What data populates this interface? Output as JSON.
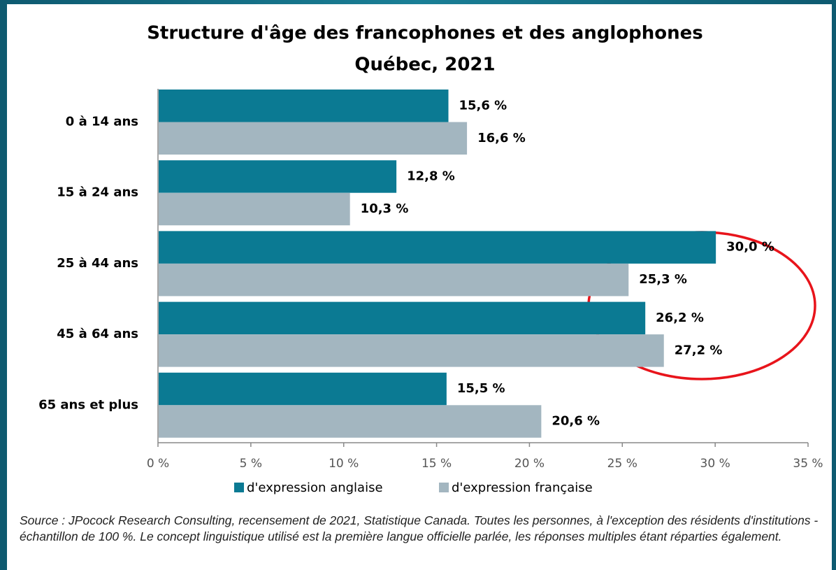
{
  "chart_data": {
    "type": "hbar",
    "title": "Structure d'âge des francophones et des anglophones",
    "subtitle": "Québec, 2021",
    "categories": [
      "0 à 14 ans",
      "15 à 24 ans",
      "25 à 44 ans",
      "45 à 64 ans",
      "65 ans et plus"
    ],
    "series": [
      {
        "name": "d'expression anglaise",
        "color": "#0b7a93",
        "values": [
          15.6,
          12.8,
          30.0,
          26.2,
          15.5
        ],
        "value_labels": [
          "15,6 %",
          "12,8 %",
          "30,0 %",
          "26,2 %",
          "15,5 %"
        ]
      },
      {
        "name": "d'expression française",
        "color": "#a3b6c0",
        "values": [
          16.6,
          10.3,
          25.3,
          27.2,
          20.6
        ],
        "value_labels": [
          "16,6 %",
          "10,3 %",
          "25,3 %",
          "27,2 %",
          "20,6 %"
        ]
      }
    ],
    "xlim": [
      0,
      35
    ],
    "xticks": [
      {
        "value": 0,
        "label": "0 %"
      },
      {
        "value": 5,
        "label": "5 %"
      },
      {
        "value": 10,
        "label": "10 %"
      },
      {
        "value": 15,
        "label": "15 %"
      },
      {
        "value": 20,
        "label": "20 %"
      },
      {
        "value": 25,
        "label": "25 %"
      },
      {
        "value": 30,
        "label": "30 %"
      },
      {
        "value": 35,
        "label": "35 %"
      }
    ],
    "legend": "bottom",
    "source": "Source : JPocock Research Consulting, recensement de 2021, Statistique Canada. Toutes les personnes, à l'exception des résidents d'institutions - échantillon de 100 %. Le concept linguistique utilisé est la première langue officielle parlée, les réponses multiples étant réparties également."
  }
}
